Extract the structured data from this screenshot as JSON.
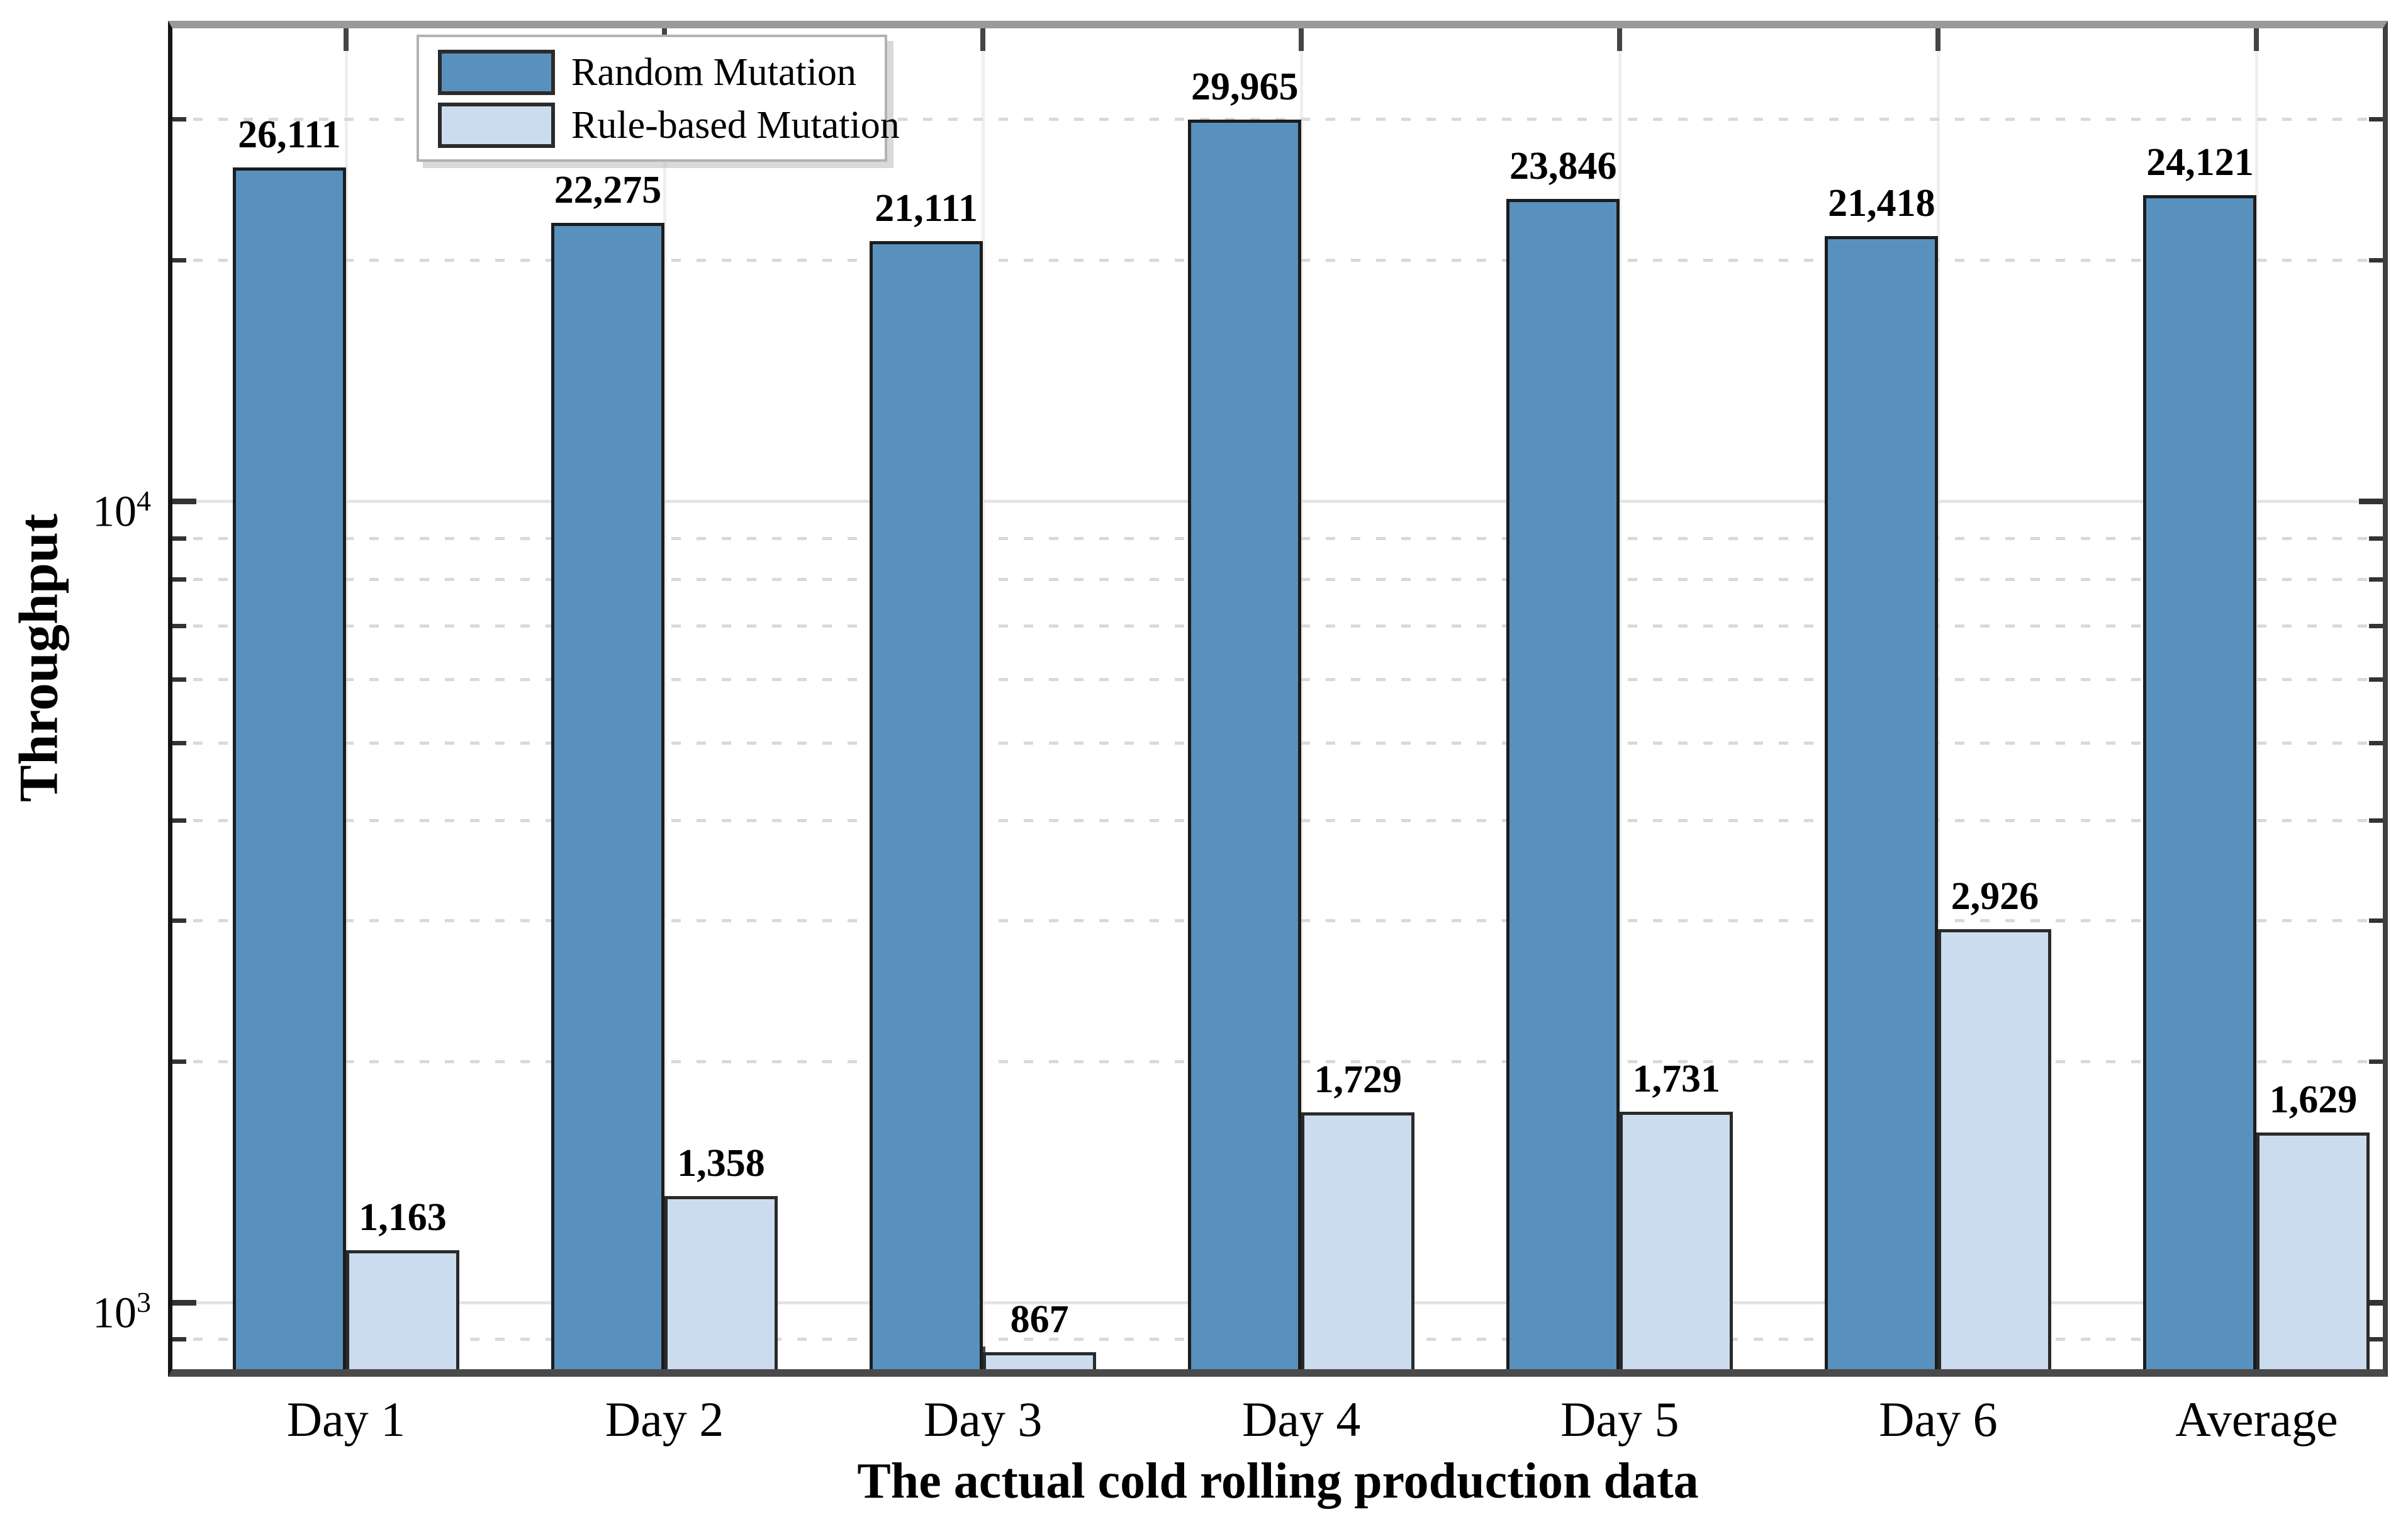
{
  "chart_data": {
    "type": "bar",
    "yscale": "log",
    "title": "",
    "xlabel": "The actual cold rolling production data",
    "ylabel": "Throughput",
    "categories": [
      "Day 1",
      "Day 2",
      "Day 3",
      "Day 4",
      "Day 5",
      "Day 6",
      "Average"
    ],
    "series": [
      {
        "name": "Random Mutation",
        "color": "#5891BE",
        "border_color": "#1c1c1c",
        "values": [
          26111,
          22275,
          21111,
          29965,
          23846,
          21418,
          24121
        ],
        "labels": [
          "26,111",
          "22,275",
          "21,111",
          "29,965",
          "23,846",
          "21,418",
          "24,121"
        ]
      },
      {
        "name": "Rule-based Mutation",
        "color": "#CBDCEE",
        "border_color": "#2a2a2a",
        "values": [
          1163,
          1358,
          867,
          1729,
          1731,
          2926,
          1629
        ],
        "labels": [
          "1,163",
          "1,358",
          "867",
          "1,729",
          "1,731",
          "2,926",
          "1,629"
        ]
      }
    ],
    "ylim": [
      808,
      39800
    ],
    "yticks_major": [
      1000,
      10000
    ],
    "ytick_major_labels": [
      "10^3",
      "10^4"
    ],
    "yticks_minor": [
      900,
      2000,
      3000,
      4000,
      5000,
      6000,
      7000,
      8000,
      9000,
      20000,
      30000
    ],
    "grid": {
      "vertical_at_categories": true,
      "horizontal_major": "solid",
      "horizontal_minor": "dashed"
    },
    "legend_position": "top-left"
  }
}
